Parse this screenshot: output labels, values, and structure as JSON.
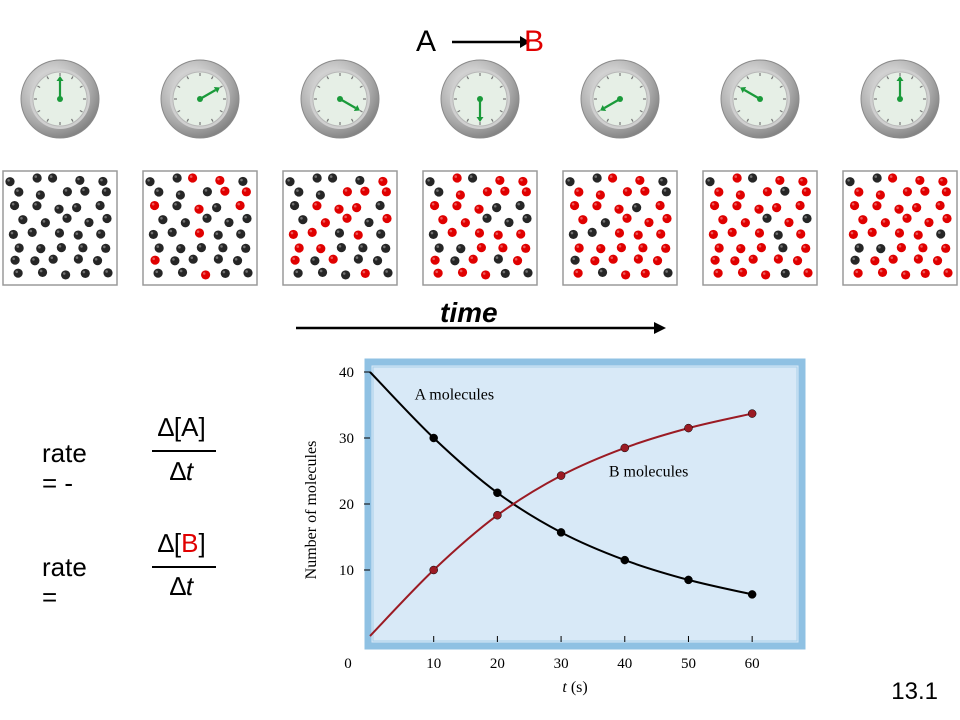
{
  "reaction": {
    "reactant": "A",
    "product": "B",
    "reactant_color": "#000000",
    "product_color": "#e00000"
  },
  "time_label": "time",
  "equations": {
    "rate_a": {
      "prefix": "rate = -",
      "numerator_open": "∆[",
      "species": "A",
      "numerator_close": "]",
      "denominator_delta": "∆",
      "denominator_var": "t",
      "species_color": "#000000"
    },
    "rate_b": {
      "prefix": "rate =",
      "numerator_open": "∆[",
      "species": "B",
      "numerator_close": "]",
      "denominator_delta": "∆",
      "denominator_var": "t",
      "species_color": "#e00000"
    }
  },
  "slide_number": "13.1",
  "colors": {
    "molecule_a": "#262626",
    "molecule_b": "#e00000",
    "clock_hand": "#1a9a3a",
    "plot_bg": "#d8e9f7",
    "plot_border": "#8fc1e3",
    "curve_b": "#9b1b24"
  },
  "time_frames": [
    0,
    10,
    20,
    30,
    40,
    50,
    60
  ],
  "molecule_counts": [
    {
      "a": 40,
      "b": 0
    },
    {
      "a": 30,
      "b": 10
    },
    {
      "a": 22,
      "b": 18
    },
    {
      "a": 15,
      "b": 25
    },
    {
      "a": 11,
      "b": 29
    },
    {
      "a": 8,
      "b": 32
    },
    {
      "a": 6,
      "b": 34
    }
  ],
  "chart_data": {
    "type": "line",
    "title": "",
    "xlabel": "t (s)",
    "ylabel": "Number of molecules",
    "xlim": [
      0,
      65
    ],
    "ylim": [
      0,
      40
    ],
    "xticks": [
      0,
      10,
      20,
      30,
      40,
      50,
      60
    ],
    "yticks": [
      10,
      20,
      30,
      40
    ],
    "grid": true,
    "series": [
      {
        "name": "A molecules",
        "color": "#000000",
        "x": [
          0,
          10,
          20,
          30,
          40,
          50,
          60
        ],
        "y": [
          40,
          30,
          21.7,
          15.7,
          11.5,
          8.5,
          6.3
        ],
        "curve_x": [
          0,
          10,
          20,
          30,
          40,
          50,
          60
        ],
        "curve_y": [
          40,
          30,
          21.7,
          15.7,
          11.5,
          8.5,
          6.3
        ]
      },
      {
        "name": "B molecules",
        "color": "#9b1b24",
        "x": [
          10,
          20,
          30,
          40,
          50,
          60
        ],
        "y": [
          10,
          18.3,
          24.3,
          28.5,
          31.5,
          33.7
        ],
        "curve_x": [
          0,
          10,
          20,
          30,
          40,
          50,
          60
        ],
        "curve_y": [
          0,
          10,
          18.3,
          24.3,
          28.5,
          31.5,
          33.7
        ]
      }
    ]
  }
}
